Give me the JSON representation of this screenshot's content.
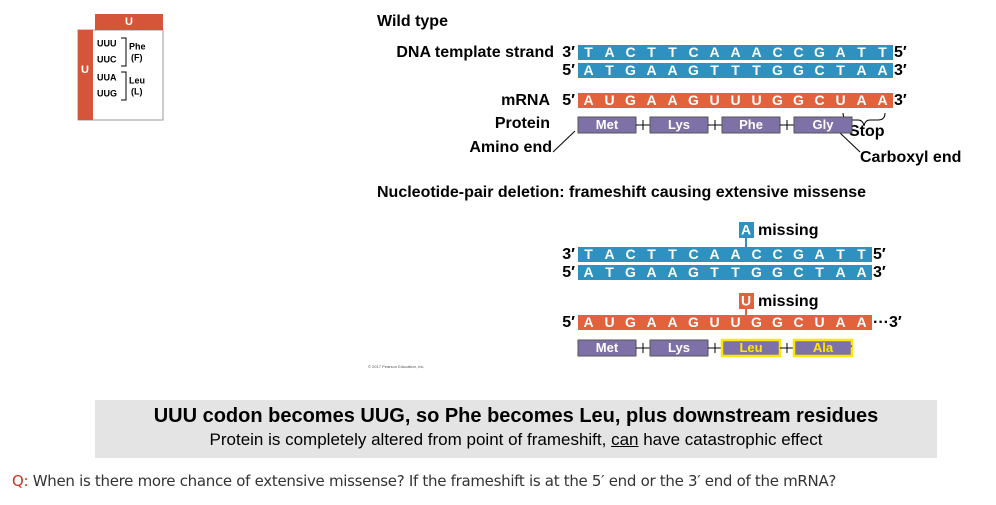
{
  "codon_table": {
    "header_top": "U",
    "header_left": "U",
    "groups": [
      {
        "codons": [
          "UUU",
          "UUC"
        ],
        "amino_acid": "Phe",
        "abbr": "(F)"
      },
      {
        "codons": [
          "UUA",
          "UUG"
        ],
        "amino_acid": "Leu",
        "abbr": "(L)"
      }
    ]
  },
  "wild_type": {
    "title": "Wild type",
    "dna_label": "DNA template strand",
    "template": {
      "left": "3′",
      "bases": [
        "T",
        "A",
        "C",
        "T",
        "T",
        "C",
        "A",
        "A",
        "A",
        "C",
        "C",
        "G",
        "A",
        "T",
        "T"
      ],
      "right": "5′"
    },
    "coding": {
      "left": "5′",
      "bases": [
        "A",
        "T",
        "G",
        "A",
        "A",
        "G",
        "T",
        "T",
        "T",
        "G",
        "G",
        "C",
        "T",
        "A",
        "A"
      ],
      "right": "3′"
    },
    "mrna_label": "mRNA",
    "mrna": {
      "left": "5′",
      "bases": [
        "A",
        "U",
        "G",
        "A",
        "A",
        "G",
        "U",
        "U",
        "U",
        "G",
        "G",
        "C",
        "U",
        "A",
        "A"
      ],
      "right": "3′"
    },
    "protein_label": "Protein",
    "protein": [
      "Met",
      "Lys",
      "Phe",
      "Gly"
    ],
    "stop": "Stop",
    "amino_end": "Amino end",
    "carboxyl_end": "Carboxyl end"
  },
  "deletion": {
    "title": "Nucleotide-pair deletion: frameshift causing extensive missense",
    "dna_missing": {
      "base": "A",
      "text": "missing"
    },
    "template": {
      "left": "3′",
      "bases": [
        "T",
        "A",
        "C",
        "T",
        "T",
        "C",
        "A",
        "A",
        "C",
        "C",
        "G",
        "A",
        "T",
        "T"
      ],
      "right": "5′"
    },
    "coding": {
      "left": "5′",
      "bases": [
        "A",
        "T",
        "G",
        "A",
        "A",
        "G",
        "T",
        "T",
        "G",
        "G",
        "C",
        "T",
        "A",
        "A"
      ],
      "right": "3′"
    },
    "mrna_missing": {
      "base": "U",
      "text": "missing"
    },
    "mrna": {
      "left": "5′",
      "bases": [
        "A",
        "U",
        "G",
        "A",
        "A",
        "G",
        "U",
        "U",
        "G",
        "G",
        "C",
        "U",
        "A",
        "A"
      ],
      "right": "···3′"
    },
    "protein": [
      "Met",
      "Lys",
      "Leu",
      "Ala"
    ],
    "protein_more": "•••"
  },
  "copyright": "© 2017 Pearson Education, Inc.",
  "caption": {
    "title": "UUU codon becomes UUG, so Phe becomes Leu, plus downstream residues",
    "text_before": "Protein is completely altered from point of frameshift, ",
    "text_underlined": "can",
    "text_after": " have catastrophic effect"
  },
  "question": {
    "label": "Q:",
    "text": "When is there more chance of extensive missense? If the frameshift is at the 5′ end or the 3′ end of the mRNA?"
  }
}
